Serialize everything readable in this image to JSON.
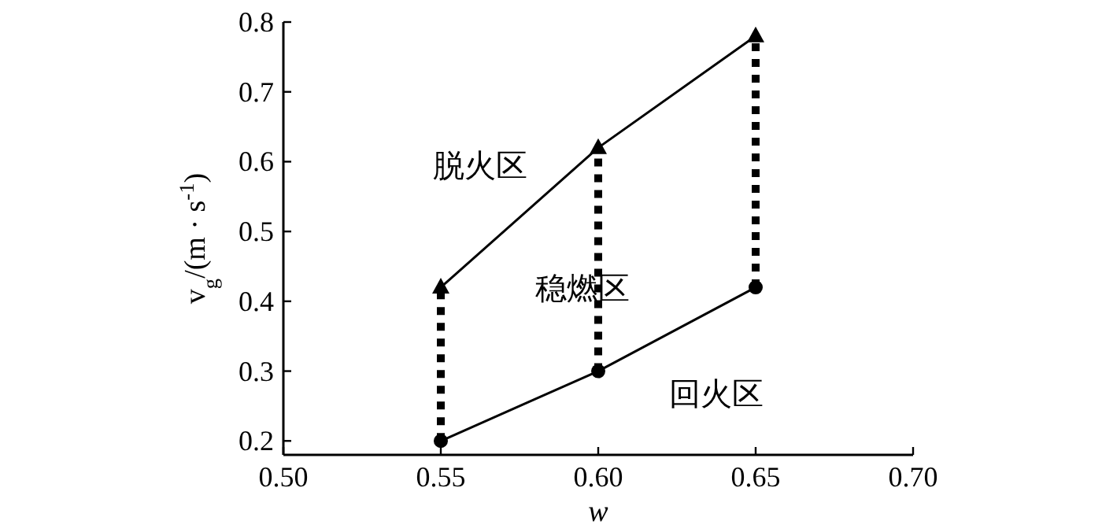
{
  "chart_data": {
    "type": "line",
    "xlabel": "w",
    "ylabel": "v$_{g}$/(m · s$^{-1}$)",
    "xlim": [
      0.5,
      0.7
    ],
    "xticks": [
      {
        "value": 0.5,
        "label": "0.50"
      },
      {
        "value": 0.55,
        "label": "0.55"
      },
      {
        "value": 0.6,
        "label": "0.60"
      },
      {
        "value": 0.65,
        "label": "0.65"
      },
      {
        "value": 0.7,
        "label": "0.70"
      }
    ],
    "ylim": [
      0.18,
      0.8
    ],
    "yticks": [
      0.2,
      0.3,
      0.4,
      0.5,
      0.6,
      0.7,
      0.8
    ],
    "x": [
      0.55,
      0.6,
      0.65
    ],
    "series": [
      {
        "color": "#000000",
        "values": [
          0.42,
          0.62,
          0.78
        ],
        "marker": "triangle",
        "line_style": "solid"
      },
      {
        "color": "#000000",
        "values": [
          0.2,
          0.3,
          0.42
        ],
        "marker": "circle",
        "line_style": "solid"
      },
      {
        "color": "#000000",
        "x": [
          0.55,
          0.55
        ],
        "values": [
          0.2,
          0.42
        ],
        "marker": "none",
        "line_style": "dotted"
      },
      {
        "color": "#000000",
        "x": [
          0.6,
          0.6
        ],
        "values": [
          0.3,
          0.62
        ],
        "marker": "none",
        "line_style": "dotted"
      },
      {
        "color": "#000000",
        "x": [
          0.65,
          0.65
        ],
        "values": [
          0.42,
          0.78
        ],
        "marker": "none",
        "line_style": "dotted"
      }
    ],
    "annotations": [
      "脱火区",
      "稳燃区",
      "回火区"
    ],
    "grid": false
  }
}
